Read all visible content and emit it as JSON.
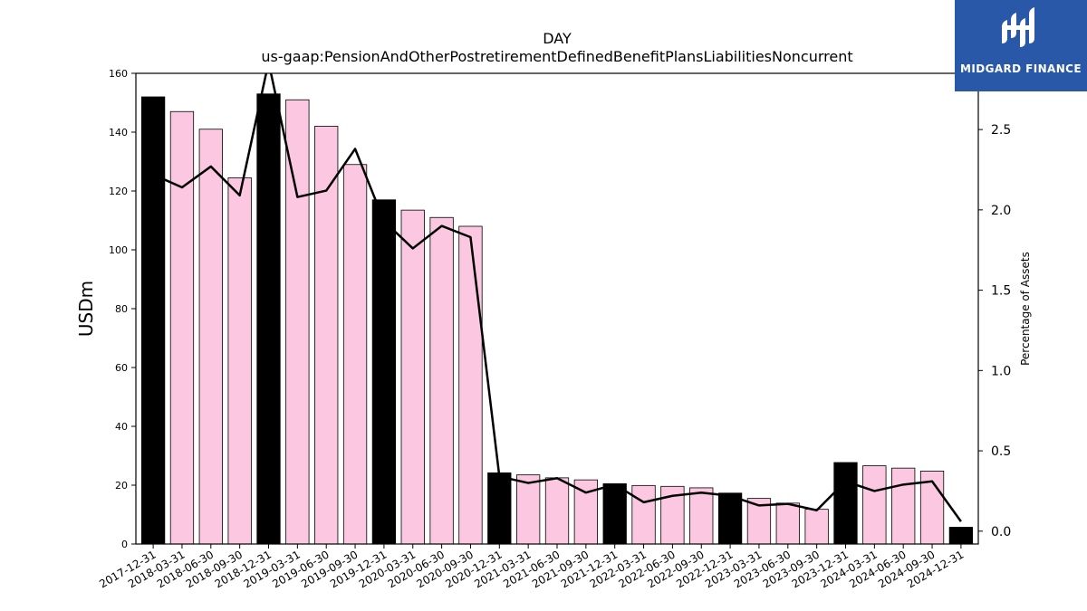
{
  "chart_data": {
    "type": "bar",
    "title": "DAY",
    "subtitle": "us-gaap:PensionAndOtherPostretirementDefinedBenefitPlansLiabilitiesNoncurrent",
    "ylabel": "USDm",
    "y2label": "Percentage of Assets",
    "ylim": [
      0,
      160
    ],
    "y2lim": [
      -0.08,
      2.85
    ],
    "yticks": [
      0,
      20,
      40,
      60,
      80,
      100,
      120,
      140,
      160
    ],
    "y2ticks": [
      "0.0",
      "0.5",
      "1.0",
      "1.5",
      "2.0",
      "2.5"
    ],
    "categories": [
      "2017-12-31",
      "2018-03-31",
      "2018-06-30",
      "2018-09-30",
      "2018-12-31",
      "2019-03-31",
      "2019-06-30",
      "2019-09-30",
      "2019-12-31",
      "2020-03-31",
      "2020-06-30",
      "2020-09-30",
      "2020-12-31",
      "2021-03-31",
      "2021-06-30",
      "2021-09-30",
      "2021-12-31",
      "2022-03-31",
      "2022-06-30",
      "2022-09-30",
      "2022-12-31",
      "2023-03-31",
      "2023-06-30",
      "2023-09-30",
      "2023-12-31",
      "2024-03-31",
      "2024-06-30",
      "2024-09-30",
      "2024-12-31"
    ],
    "values": [
      152,
      147,
      141,
      124.5,
      153,
      151,
      142,
      129,
      117,
      113.5,
      111,
      108,
      24.2,
      23.5,
      22.5,
      21.8,
      20.5,
      19.9,
      19.6,
      19.1,
      17.3,
      15.5,
      13.9,
      11.8,
      27.7,
      26.6,
      25.8,
      24.8,
      5.7
    ],
    "annual_flags": [
      true,
      false,
      false,
      false,
      true,
      false,
      false,
      false,
      true,
      false,
      false,
      false,
      true,
      false,
      false,
      false,
      true,
      false,
      false,
      false,
      true,
      false,
      false,
      false,
      true,
      false,
      false,
      false,
      true
    ],
    "line_series": {
      "name": "Percentage of Assets",
      "values": [
        2.22,
        2.14,
        2.27,
        2.09,
        2.92,
        2.08,
        2.12,
        2.38,
        1.93,
        1.76,
        1.9,
        1.83,
        0.34,
        0.3,
        0.33,
        0.24,
        0.29,
        0.18,
        0.22,
        0.24,
        0.22,
        0.16,
        0.17,
        0.13,
        0.31,
        0.25,
        0.29,
        0.31,
        0.06
      ]
    },
    "colors": {
      "annual_bar": "#000000",
      "quarter_bar": "#fcc8e1",
      "line": "#000000"
    },
    "grid": false,
    "legend": "none"
  },
  "logo": {
    "text": "MIDGARD FINANCE",
    "color": "#2a58a8"
  }
}
